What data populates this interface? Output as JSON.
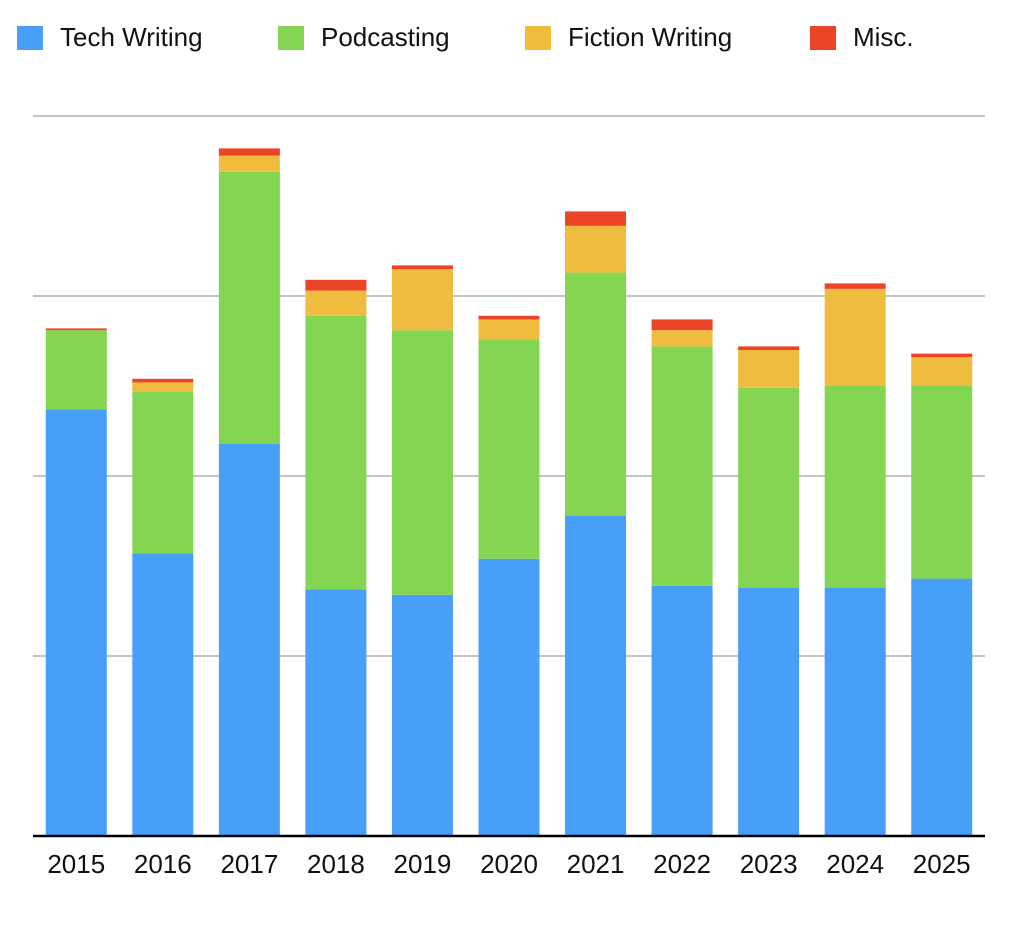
{
  "chart_data": {
    "type": "stacked_bar",
    "categories": [
      "2015",
      "2016",
      "2017",
      "2018",
      "2019",
      "2020",
      "2021",
      "2022",
      "2023",
      "2024",
      "2025"
    ],
    "series": [
      {
        "name": "Tech Writing",
        "color": "#479ff8",
        "values": [
          23.7,
          15.7,
          21.8,
          13.7,
          13.4,
          15.4,
          17.8,
          13.9,
          13.8,
          13.8,
          14.3
        ]
      },
      {
        "name": "Podcasting",
        "color": "#84d552",
        "values": [
          4.4,
          9.0,
          15.1,
          15.2,
          14.7,
          12.2,
          13.5,
          13.3,
          11.1,
          11.2,
          10.7
        ]
      },
      {
        "name": "Fiction Writing",
        "color": "#f0bc40",
        "values": [
          0,
          0.5,
          0.9,
          1.4,
          3.4,
          1.1,
          2.6,
          0.9,
          2.1,
          5.4,
          1.6
        ]
      },
      {
        "name": "Misc.",
        "color": "#ec4427",
        "values": [
          0.1,
          0.2,
          0.4,
          0.6,
          0.2,
          0.2,
          0.8,
          0.6,
          0.2,
          0.3,
          0.2
        ]
      }
    ],
    "ylim": [
      0,
      40
    ],
    "gridlines": [
      10,
      20,
      30,
      40
    ],
    "legend": "top"
  }
}
